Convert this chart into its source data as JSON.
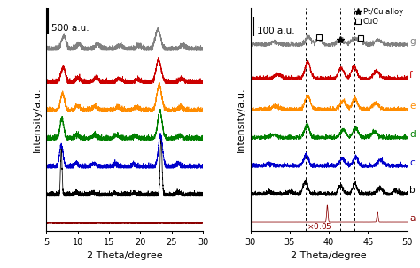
{
  "left_panel": {
    "xlim": [
      5,
      30
    ],
    "xticks": [
      5,
      10,
      15,
      20,
      25,
      30
    ],
    "xlabel": "2 Theta/degree",
    "ylabel": "Intensity/a.u.",
    "scale_bar_text": "500 a.u.",
    "colors": [
      "#8B0000",
      "#000000",
      "#0000CC",
      "#008000",
      "#FF8C00",
      "#CC0000",
      "#808080"
    ],
    "offsets": [
      0,
      55,
      110,
      165,
      220,
      275,
      340
    ],
    "noise_scale": [
      0.3,
      2.0,
      2.0,
      2.0,
      2.0,
      2.0,
      2.0
    ]
  },
  "right_panel": {
    "xlim": [
      30,
      50
    ],
    "xticks": [
      30,
      35,
      40,
      45,
      50
    ],
    "xlabel": "2 Theta/degree",
    "ylabel": "Intensity/a.u.",
    "scale_bar_text": "100 a.u.",
    "colors": [
      "#8B0000",
      "#000000",
      "#0000CC",
      "#008000",
      "#FF8C00",
      "#CC0000",
      "#808080"
    ],
    "offsets": [
      0,
      50,
      100,
      150,
      200,
      255,
      315
    ],
    "dashed_lines": [
      37.0,
      41.5,
      43.3
    ],
    "labels": [
      "a",
      "b",
      "c",
      "d",
      "e",
      "f",
      "g"
    ],
    "scale_bar_height": 80
  },
  "background": "#ffffff",
  "tick_fontsize": 7,
  "label_fontsize": 8
}
